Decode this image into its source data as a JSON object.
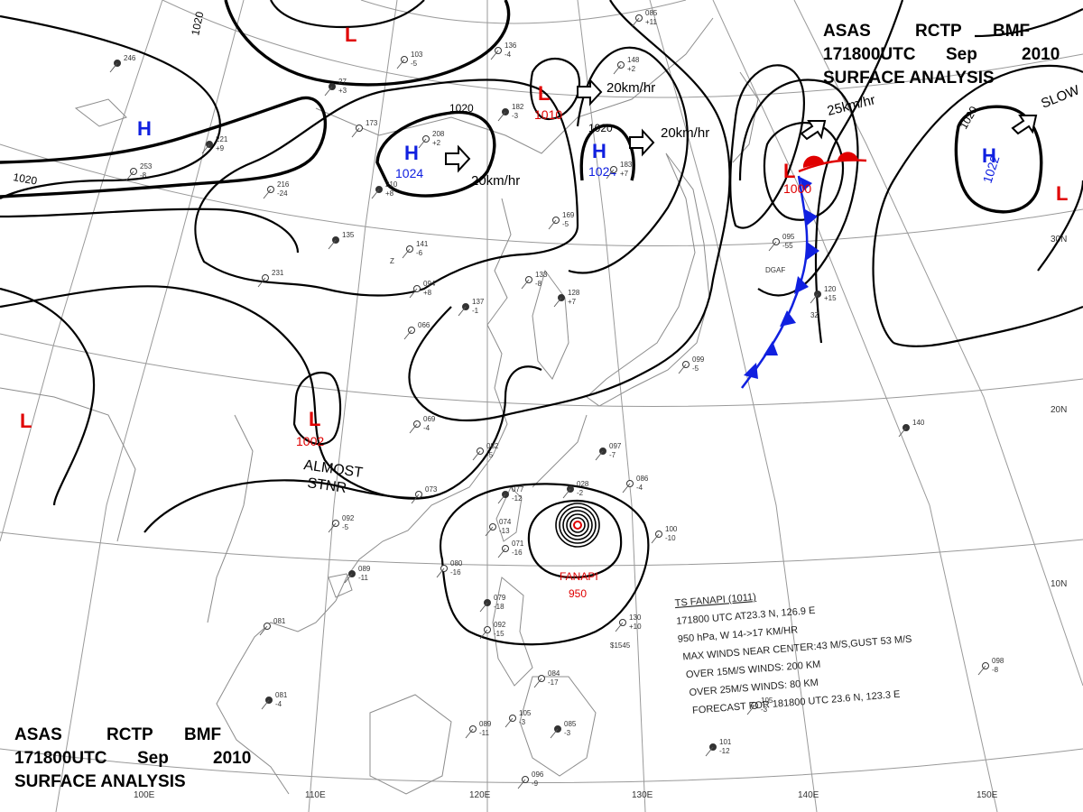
{
  "header": {
    "top_right": {
      "line1": [
        "ASAS",
        "RCTP",
        "BMF"
      ],
      "line2": [
        "171800UTC",
        "Sep",
        "2010"
      ],
      "line3": "SURFACE ANALYSIS"
    },
    "bottom_left": {
      "line1": [
        "ASAS",
        "RCTP",
        "BMF"
      ],
      "line2": [
        "171800UTC",
        "Sep",
        "2010"
      ],
      "line3": "SURFACE ANALYSIS"
    }
  },
  "grid_labels": {
    "longitudes": [
      "100E",
      "110E",
      "120E",
      "130E",
      "140E",
      "150E"
    ],
    "latitudes": [
      "10N",
      "20N",
      "30N"
    ]
  },
  "colors": {
    "low": "#e00000",
    "high": "#1020e0",
    "front_cold": "#1020e0",
    "front_warm": "#e00000",
    "cyclone_label": "#e00000"
  },
  "pressure_centers": [
    {
      "type": "H",
      "value": ""
    },
    {
      "type": "H",
      "value": "1024"
    },
    {
      "type": "H",
      "value": "1024"
    },
    {
      "type": "H",
      "value": "1022"
    },
    {
      "type": "L",
      "value": "1010"
    },
    {
      "type": "L",
      "value": "1000"
    },
    {
      "type": "L",
      "value": "1002"
    },
    {
      "type": "L",
      "value": ""
    },
    {
      "type": "L",
      "value": ""
    },
    {
      "type": "L",
      "value": ""
    }
  ],
  "isobar_labels": [
    "1020",
    "1020",
    "1020",
    "1020",
    "1020"
  ],
  "motion_labels": [
    "20km/hr",
    "20km/hr",
    "20km/hr",
    "25km/hr",
    "SLOW"
  ],
  "stationary_note": [
    "ALMOST",
    "STNR"
  ],
  "typhoon": {
    "name": "FANAPI",
    "pressure": "950"
  },
  "bulletin": [
    "TS FANAPI (1011)",
    "171800 UTC  AT23.3 N, 126.9 E",
    "950 hPa, W  14->17 KM/HR",
    "MAX WINDS NEAR CENTER:43 M/S,GUST 53 M/S",
    "OVER 15M/S WINDS: 200 KM",
    "OVER 25M/S WINDS: 80 KM",
    "FORECAST FOR 181800 UTC 23.6 N, 123.3 E"
  ],
  "stations": [
    {
      "t": "246",
      "v": ""
    },
    {
      "t": "136",
      "v": "-4"
    },
    {
      "t": "103",
      "v": "-5"
    },
    {
      "t": "27",
      "v": "+3"
    },
    {
      "t": "173",
      "v": ""
    },
    {
      "t": "208",
      "v": "+2"
    },
    {
      "t": "182",
      "v": "-3"
    },
    {
      "t": "148",
      "v": "+2"
    },
    {
      "t": "085",
      "v": "+11"
    },
    {
      "t": "221",
      "v": "+9"
    },
    {
      "t": "253",
      "v": "-8"
    },
    {
      "t": "216",
      "v": "-24"
    },
    {
      "t": "210",
      "v": "+8"
    },
    {
      "t": "183",
      "v": "+7"
    },
    {
      "t": "169",
      "v": "-5"
    },
    {
      "t": "135",
      "v": ""
    },
    {
      "t": "141",
      "v": "-6"
    },
    {
      "t": "231",
      "v": ""
    },
    {
      "t": "137",
      "v": "-1"
    },
    {
      "t": "094",
      "v": "+8"
    },
    {
      "t": "133",
      "v": "-8"
    },
    {
      "t": "128",
      "v": "+7"
    },
    {
      "t": "066",
      "v": ""
    },
    {
      "t": "095",
      "v": "-55"
    },
    {
      "t": "120",
      "v": "+15"
    },
    {
      "t": "099",
      "v": "-5"
    },
    {
      "t": "069",
      "v": "-4"
    },
    {
      "t": "097",
      "v": "-7"
    },
    {
      "t": "082",
      "v": "-5"
    },
    {
      "t": "086",
      "v": "-4"
    },
    {
      "t": "077",
      "v": "-12"
    },
    {
      "t": "074",
      "v": "-13"
    },
    {
      "t": "071",
      "v": "-16"
    },
    {
      "t": "028",
      "v": "-2"
    },
    {
      "t": "100",
      "v": "-10"
    },
    {
      "t": "092",
      "v": "-5"
    },
    {
      "t": "089",
      "v": "-11"
    },
    {
      "t": "080",
      "v": "-16"
    },
    {
      "t": "130",
      "v": "+10"
    },
    {
      "t": "079",
      "v": "-18"
    },
    {
      "t": "092",
      "v": "-15"
    },
    {
      "t": "081",
      "v": ""
    },
    {
      "t": "081",
      "v": "-4"
    },
    {
      "t": "084",
      "v": "-17"
    },
    {
      "t": "105",
      "v": "-3"
    },
    {
      "t": "085",
      "v": "-3"
    },
    {
      "t": "089",
      "v": "-11"
    },
    {
      "t": "096",
      "v": "-9"
    },
    {
      "t": "101",
      "v": "-12"
    },
    {
      "t": "105",
      "v": "-3"
    },
    {
      "t": "098",
      "v": "-8"
    },
    {
      "t": "140",
      "v": ""
    },
    {
      "t": "073",
      "v": ""
    }
  ],
  "station_codes": [
    "DGAF",
    "3Z",
    "Z",
    "$1545"
  ]
}
